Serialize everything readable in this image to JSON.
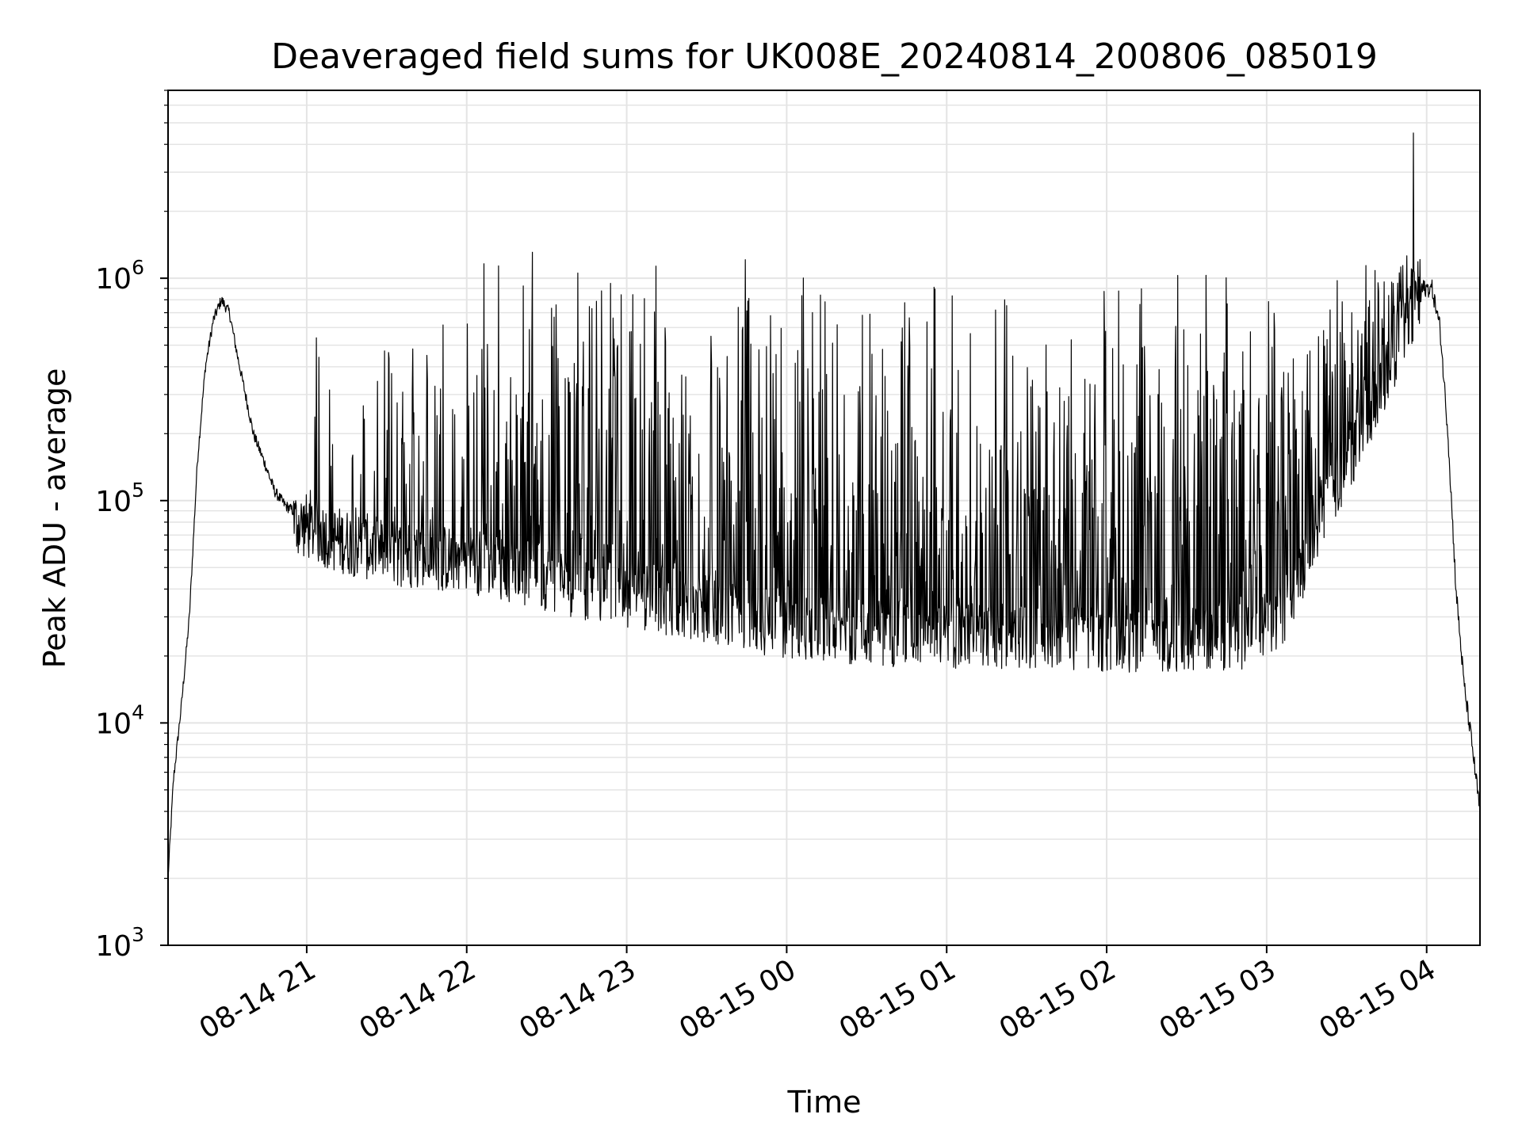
{
  "chart_data": {
    "type": "line",
    "title": "Deaveraged field sums for UK008E_20240814_200806_085019",
    "xlabel": "Time",
    "ylabel": "Peak ADU - average",
    "yscale": "log",
    "ylim": [
      1000,
      7000000
    ],
    "xlim": [
      "2024-08-14 20:08",
      "2024-08-15 04:20"
    ],
    "grid": true,
    "x_ticks": [
      {
        "t": "2024-08-14 21:00",
        "label": "08-14 21"
      },
      {
        "t": "2024-08-14 22:00",
        "label": "08-14 22"
      },
      {
        "t": "2024-08-14 23:00",
        "label": "08-14 23"
      },
      {
        "t": "2024-08-15 00:00",
        "label": "08-15 00"
      },
      {
        "t": "2024-08-15 01:00",
        "label": "08-15 01"
      },
      {
        "t": "2024-08-15 02:00",
        "label": "08-15 02"
      },
      {
        "t": "2024-08-15 03:00",
        "label": "08-15 03"
      },
      {
        "t": "2024-08-15 04:00",
        "label": "08-15 04"
      }
    ],
    "y_ticks": [
      {
        "value": 1000,
        "base": "10",
        "exp": "3"
      },
      {
        "value": 10000,
        "base": "10",
        "exp": "4"
      },
      {
        "value": 100000,
        "base": "10",
        "exp": "5"
      },
      {
        "value": 1000000,
        "base": "10",
        "exp": "6"
      }
    ],
    "series": [
      {
        "color": "#000000",
        "baseline_x": [
          "2024-08-14 20:08",
          "2024-08-14 20:10",
          "2024-08-14 20:13",
          "2024-08-14 20:16",
          "2024-08-14 20:19",
          "2024-08-14 20:22",
          "2024-08-14 20:25",
          "2024-08-14 20:28",
          "2024-08-14 20:31",
          "2024-08-14 20:34",
          "2024-08-14 20:37",
          "2024-08-14 20:40",
          "2024-08-14 20:44",
          "2024-08-14 20:48",
          "2024-08-14 20:52",
          "2024-08-14 20:56",
          "2024-08-14 21:00",
          "2024-08-14 21:10",
          "2024-08-14 21:20",
          "2024-08-14 21:30",
          "2024-08-14 21:45",
          "2024-08-14 22:00",
          "2024-08-14 22:15",
          "2024-08-14 22:30",
          "2024-08-14 22:45",
          "2024-08-14 23:00",
          "2024-08-14 23:20",
          "2024-08-14 23:40",
          "2024-08-15 00:00",
          "2024-08-15 00:20",
          "2024-08-15 00:40",
          "2024-08-15 01:00",
          "2024-08-15 01:30",
          "2024-08-15 02:00",
          "2024-08-15 02:30",
          "2024-08-15 02:50",
          "2024-08-15 03:05",
          "2024-08-15 03:15",
          "2024-08-15 03:25",
          "2024-08-15 03:35",
          "2024-08-15 03:45",
          "2024-08-15 03:52",
          "2024-08-15 03:58",
          "2024-08-15 04:02",
          "2024-08-15 04:05",
          "2024-08-15 04:08",
          "2024-08-15 04:11",
          "2024-08-15 04:14",
          "2024-08-15 04:17",
          "2024-08-15 04:20"
        ],
        "baseline_y": [
          2000,
          5500,
          12000,
          30000,
          150000,
          400000,
          650000,
          800000,
          700000,
          450000,
          300000,
          200000,
          150000,
          110000,
          95000,
          88000,
          85000,
          75000,
          70000,
          65000,
          62000,
          60000,
          55000,
          50000,
          45000,
          42000,
          38000,
          34000,
          30000,
          29000,
          28000,
          27000,
          27000,
          26500,
          26000,
          27000,
          33000,
          60000,
          120000,
          220000,
          400000,
          700000,
          900000,
          900000,
          600000,
          200000,
          40000,
          15000,
          8000,
          4000
        ],
        "spike_band": [
          "2024-08-14 20:55",
          "2024-08-15 03:58"
        ],
        "spike_peak": 1400000,
        "max_peak": {
          "t": "2024-08-15 03:55",
          "value": 4500000
        }
      }
    ]
  }
}
